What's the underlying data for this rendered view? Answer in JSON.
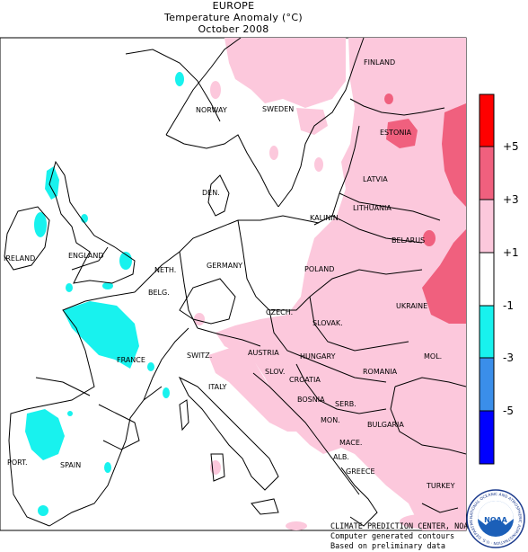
{
  "header": {
    "region": "EUROPE",
    "variable": "Temperature Anomaly (°C)",
    "period": "October 2008"
  },
  "legend": {
    "bins": [
      {
        "color": "#ff0000"
      },
      {
        "color": "#f0607e"
      },
      {
        "color": "#fcc8dc"
      },
      {
        "color": "#ffffff"
      },
      {
        "color": "#18f2ee"
      },
      {
        "color": "#3a8eea"
      },
      {
        "color": "#0000ff"
      }
    ],
    "labels": [
      "+5",
      "+3",
      "+1",
      "-1",
      "-3",
      "-5"
    ]
  },
  "countries": {
    "finland": "FINLAND",
    "norway": "NORWAY",
    "sweden": "SWEDEN",
    "estonia": "ESTONIA",
    "latvia": "LATVIA",
    "lithuania": "LITHUANIA",
    "kaliningrad": "KALININ.",
    "denmark": "DEN.",
    "belarus": "BELARUS",
    "ireland": "IRELAND",
    "england": "ENGLAND",
    "netherlands": "NETH.",
    "germany": "GERMANY",
    "poland": "POLAND",
    "belgium": "BELG.",
    "czech": "CZECH.",
    "slovakia": "SLOVAK.",
    "ukraine": "UKRAINE",
    "france": "FRANCE",
    "switzerland": "SWITZ.",
    "austria": "AUSTRIA",
    "hungary": "HUNGARY",
    "moldova": "MOL.",
    "slovenia": "SLOV.",
    "croatia": "CROATIA",
    "romania": "ROMANIA",
    "italy": "ITALY",
    "bosnia": "BOSNIA",
    "serbia": "SERB.",
    "montenegro": "MON.",
    "bulgaria": "BULGARIA",
    "macedonia": "MACE.",
    "portugal": "PORT.",
    "spain": "SPAIN",
    "albania": "ALB.",
    "greece": "GREECE",
    "turkey": "TURKEY"
  },
  "credits": {
    "line1": "CLIMATE PREDICTION CENTER, NOAA",
    "line2": "Computer generated contours",
    "line3": "Based on preliminary data"
  },
  "logo": {
    "name": "NOAA",
    "ring_text": "NATIONAL OCEANIC AND ATMOSPHERIC ADMINISTRATION · U.S. DEPARTMENT OF COMMERCE"
  }
}
